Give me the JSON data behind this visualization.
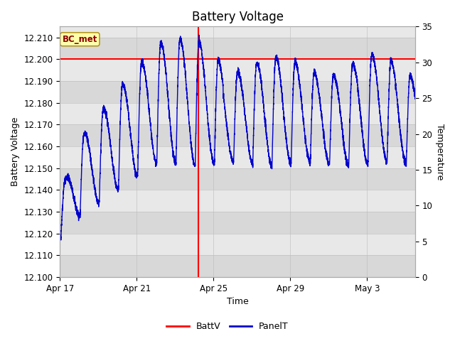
{
  "title": "Battery Voltage",
  "xlabel": "Time",
  "ylabel_left": "Battery Voltage",
  "ylabel_right": "Temperature",
  "ylim_left": [
    12.1,
    12.215
  ],
  "ylim_right": [
    0,
    35
  ],
  "xlim": [
    0,
    18.5
  ],
  "x_ticks": [
    0,
    4,
    8,
    12,
    16
  ],
  "x_tick_labels": [
    "Apr 17",
    "Apr 21",
    "Apr 25",
    "Apr 29",
    "May 3"
  ],
  "batt_v": 12.2,
  "vertical_line_x": 7.2,
  "bg_color": "#ffffff",
  "plot_bg_even": "#e8e8e8",
  "plot_bg_odd": "#d8d8d8",
  "annotation_label": "BC_met",
  "red_line_color": "#ff0000",
  "blue_line_color": "#0000cc",
  "legend_labels": [
    "BattV",
    "PanelT"
  ],
  "title_fontsize": 12,
  "label_fontsize": 9,
  "tick_fontsize": 8.5,
  "figsize": [
    6.4,
    4.8
  ],
  "dpi": 100
}
